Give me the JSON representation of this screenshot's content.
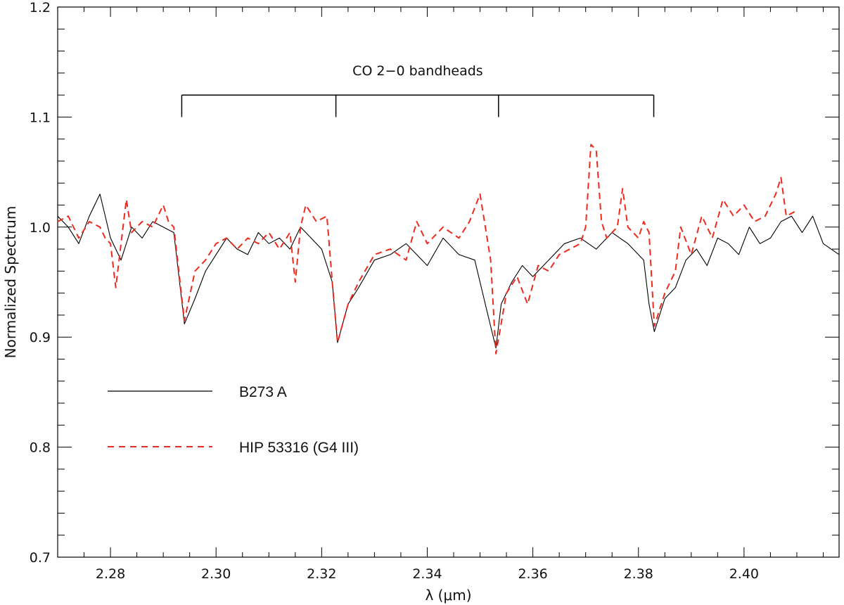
{
  "chart_data": {
    "type": "line",
    "title": "",
    "xlabel": "λ (μm)",
    "ylabel": "Normalized Spectrum",
    "xlim": [
      2.27,
      2.418
    ],
    "ylim": [
      0.7,
      1.2
    ],
    "x_ticks": [
      2.28,
      2.3,
      2.32,
      2.34,
      2.36,
      2.38,
      2.4
    ],
    "x_tick_labels": [
      "2.28",
      "2.30",
      "2.32",
      "2.34",
      "2.36",
      "2.38",
      "2.40"
    ],
    "y_ticks": [
      0.7,
      0.8,
      0.9,
      1.0,
      1.1,
      1.2
    ],
    "y_tick_labels": [
      "0.7",
      "0.8",
      "0.9",
      "1.0",
      "1.1",
      "1.2"
    ],
    "grid": false,
    "legend_position": "lower-left",
    "annotation": {
      "text": "CO 2−0 bandheads",
      "bracket_y": 1.12,
      "bandheads": [
        2.2935,
        2.3227,
        2.3535,
        2.3829
      ],
      "tick_bottom_y": 1.1
    },
    "series": [
      {
        "name": "B273 A",
        "style": "solid",
        "color": "#000000",
        "x": [
          2.27,
          2.272,
          2.274,
          2.276,
          2.278,
          2.28,
          2.282,
          2.284,
          2.286,
          2.288,
          2.29,
          2.292,
          2.294,
          2.296,
          2.298,
          2.3,
          2.302,
          2.304,
          2.306,
          2.308,
          2.31,
          2.312,
          2.314,
          2.316,
          2.318,
          2.32,
          2.322,
          2.323,
          2.325,
          2.327,
          2.33,
          2.333,
          2.336,
          2.34,
          2.343,
          2.346,
          2.349,
          2.351,
          2.353,
          2.354,
          2.356,
          2.358,
          2.36,
          2.363,
          2.366,
          2.369,
          2.372,
          2.375,
          2.378,
          2.381,
          2.382,
          2.383,
          2.385,
          2.387,
          2.389,
          2.391,
          2.393,
          2.395,
          2.397,
          2.399,
          2.401,
          2.403,
          2.405,
          2.407,
          2.409,
          2.411,
          2.413,
          2.415,
          2.418
        ],
        "y": [
          1.01,
          1.0,
          0.985,
          1.01,
          1.03,
          0.99,
          0.97,
          1.0,
          0.99,
          1.005,
          1.0,
          0.995,
          0.912,
          0.935,
          0.96,
          0.975,
          0.99,
          0.98,
          0.975,
          0.995,
          0.985,
          0.99,
          0.98,
          1.0,
          0.99,
          0.98,
          0.95,
          0.895,
          0.93,
          0.945,
          0.97,
          0.975,
          0.985,
          0.965,
          0.99,
          0.975,
          0.97,
          0.93,
          0.89,
          0.93,
          0.95,
          0.965,
          0.955,
          0.97,
          0.985,
          0.99,
          0.98,
          0.995,
          0.985,
          0.97,
          0.93,
          0.905,
          0.935,
          0.945,
          0.97,
          0.98,
          0.965,
          0.99,
          0.985,
          0.975,
          1.0,
          0.985,
          0.99,
          1.005,
          1.01,
          0.995,
          1.01,
          0.985,
          0.975
        ]
      },
      {
        "name": "HIP 53316 (G4 III)",
        "style": "dashed",
        "color": "#ee2a1c",
        "x": [
          2.27,
          2.272,
          2.274,
          2.276,
          2.278,
          2.279,
          2.28,
          2.281,
          2.283,
          2.284,
          2.286,
          2.288,
          2.29,
          2.291,
          2.292,
          2.294,
          2.296,
          2.298,
          2.3,
          2.302,
          2.304,
          2.306,
          2.308,
          2.31,
          2.312,
          2.314,
          2.315,
          2.316,
          2.317,
          2.319,
          2.321,
          2.322,
          2.323,
          2.325,
          2.327,
          2.33,
          2.333,
          2.336,
          2.338,
          2.34,
          2.343,
          2.346,
          2.348,
          2.35,
          2.352,
          2.353,
          2.355,
          2.357,
          2.359,
          2.361,
          2.363,
          2.365,
          2.367,
          2.369,
          2.37,
          2.371,
          2.372,
          2.373,
          2.374,
          2.376,
          2.377,
          2.378,
          2.38,
          2.381,
          2.382,
          2.383,
          2.385,
          2.387,
          2.388,
          2.39,
          2.392,
          2.394,
          2.396,
          2.398,
          2.4,
          2.402,
          2.404,
          2.406,
          2.407,
          2.408,
          2.41
        ],
        "y": [
          1.005,
          1.01,
          0.99,
          1.005,
          1.0,
          0.99,
          0.985,
          0.945,
          1.025,
          0.995,
          1.005,
          1.0,
          1.02,
          1.005,
          1.0,
          0.915,
          0.96,
          0.97,
          0.985,
          0.99,
          0.98,
          0.99,
          0.985,
          0.995,
          0.98,
          0.995,
          0.95,
          1.0,
          1.02,
          1.005,
          1.01,
          0.95,
          0.895,
          0.93,
          0.95,
          0.975,
          0.98,
          0.97,
          1.005,
          0.985,
          1.0,
          0.99,
          1.005,
          1.03,
          0.97,
          0.885,
          0.94,
          0.955,
          0.93,
          0.965,
          0.96,
          0.975,
          0.98,
          0.985,
          1.0,
          1.075,
          1.07,
          1.005,
          0.99,
          1.0,
          1.035,
          1.0,
          0.99,
          1.005,
          0.995,
          0.91,
          0.94,
          0.96,
          1.0,
          0.975,
          1.01,
          0.99,
          1.025,
          1.01,
          1.02,
          1.005,
          1.01,
          1.03,
          1.045,
          1.01,
          1.015
        ]
      }
    ]
  }
}
